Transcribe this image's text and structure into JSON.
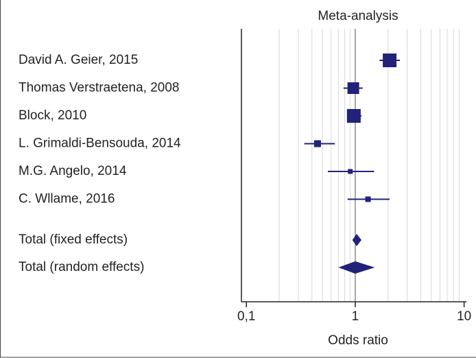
{
  "chart_data": {
    "type": "forest",
    "title": "Meta-analysis",
    "xlabel": "Odds ratio",
    "xscale": "log",
    "xlim": [
      0.09,
      10.5
    ],
    "xticks": [
      {
        "value": 0.1,
        "label": "0,1"
      },
      1,
      10
    ],
    "xgrid": [
      0.2,
      0.3,
      0.4,
      0.5,
      0.6,
      0.7,
      0.8,
      0.9,
      2,
      3,
      4,
      5,
      6,
      7,
      8,
      9
    ],
    "reference_line": 1,
    "color": "#22227a",
    "studies": [
      {
        "name": "David A. Geier, 2015",
        "value": 2.07,
        "lower": 1.67,
        "upper": 2.57,
        "weight": 30.7
      },
      {
        "name": "Thomas Verstraetena, 2008",
        "value": 0.96,
        "lower": 0.78,
        "upper": 1.17,
        "weight": 22.2
      },
      {
        "name": "Block, 2010",
        "value": 0.97,
        "lower": 0.84,
        "upper": 1.14,
        "weight": 30.7
      },
      {
        "name": "L. Grimaldi-Bensouda, 2014",
        "value": 0.45,
        "lower": 0.34,
        "upper": 0.65,
        "weight": 7.7
      },
      {
        "name": "M.G. Angelo, 2014",
        "value": 0.9,
        "lower": 0.56,
        "upper": 1.49,
        "weight": 3.8
      },
      {
        "name": "C. Wllame, 2016",
        "value": 1.31,
        "lower": 0.85,
        "upper": 2.07,
        "weight": 4.9
      }
    ],
    "totals": [
      {
        "name": "Total (fixed effects)",
        "value": 1.03,
        "lower": 0.94,
        "upper": 1.14
      },
      {
        "name": "Total (random effects)",
        "value": 1.0,
        "lower": 0.7,
        "upper": 1.51
      }
    ]
  }
}
